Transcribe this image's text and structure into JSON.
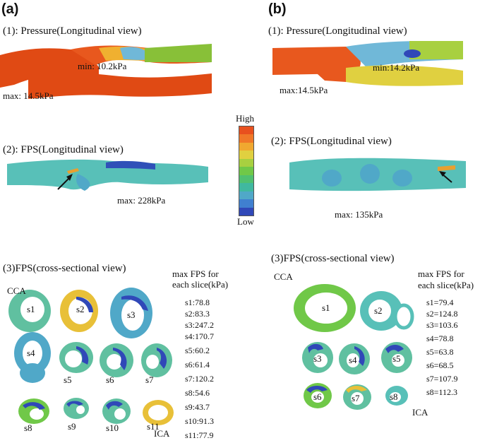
{
  "panel_a": {
    "label": "(a)",
    "pressure": {
      "title": "(1): Pressure(Longitudinal view)",
      "min": "min: 10.2kPa",
      "max": "max: 14.5kPa"
    },
    "fps_long": {
      "title": "(2): FPS(Longitudinal view)",
      "max": "max: 228kPa"
    },
    "fps_cross": {
      "title": "(3)FPS(cross-sectional view)",
      "cca": "CCA",
      "ica": "ICA",
      "slice_header_1": "max FPS for",
      "slice_header_2": "each slice(kPa)",
      "slices": [
        "s1",
        "s2",
        "s3",
        "s4",
        "s5",
        "s6",
        "s7",
        "s8",
        "s9",
        "s10",
        "s11"
      ],
      "values": [
        "s1:78.8",
        "s2:83.3",
        "s3:247.2",
        "s4:170.7",
        "s5:60.2",
        "s6:61.4",
        "s7:120.2",
        "s8:54.6",
        "s9:43.7",
        "s10:91.3",
        "s11:77.9"
      ]
    }
  },
  "panel_b": {
    "label": "(b)",
    "pressure": {
      "title": "(1): Pressure(Longitudinal view)",
      "min": "min:14.2kPa",
      "max": "max:14.5kPa"
    },
    "fps_long": {
      "title": "(2): FPS(Longitudinal view)",
      "max": "max: 135kPa"
    },
    "fps_cross": {
      "title": "(3)FPS(cross-sectional view)",
      "cca": "CCA",
      "ica": "ICA",
      "slice_header_1": "max FPS for",
      "slice_header_2": "each slice(kPa)",
      "slices": [
        "s1",
        "s2",
        "s3",
        "s4",
        "s5",
        "s6",
        "s7",
        "s8"
      ],
      "values": [
        "s1=79.4",
        "s2=124.8",
        "s3=103.6",
        "s4=78.8",
        "s5=63.8",
        "s6=68.5",
        "s7=107.9",
        "s8=112.3"
      ]
    }
  },
  "colorbar": {
    "high": "High",
    "low": "Low",
    "colors": [
      "#e8501e",
      "#f07828",
      "#f0a830",
      "#e0d040",
      "#a8d040",
      "#70c848",
      "#50c070",
      "#40b8a0",
      "#50a8c8",
      "#4080d0",
      "#3048b8"
    ]
  }
}
